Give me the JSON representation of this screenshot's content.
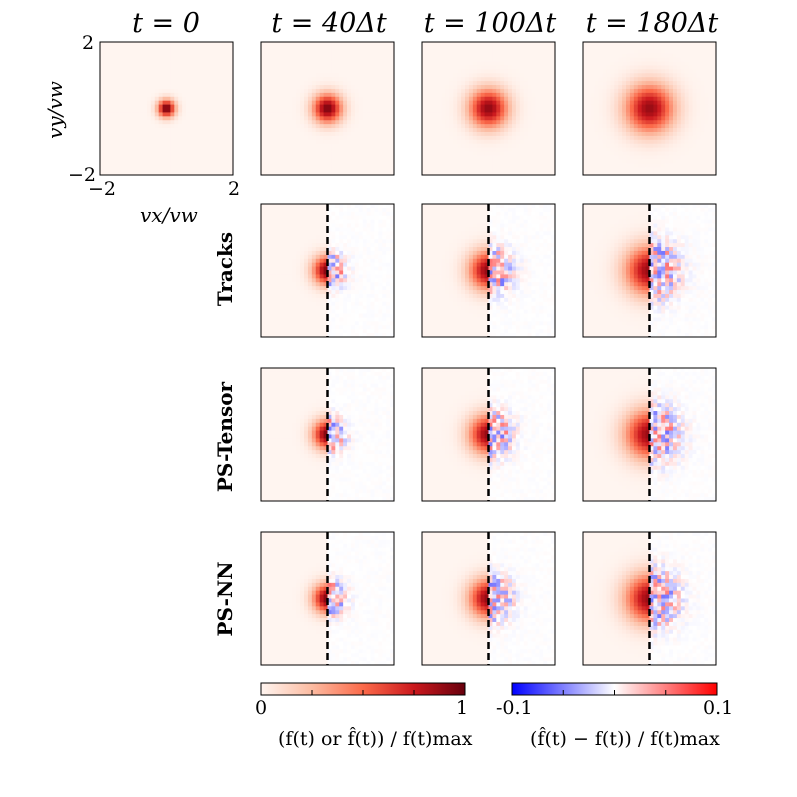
{
  "figure": {
    "column_titles": [
      "t = 0",
      "t = 40Δt",
      "t = 100Δt",
      "t = 180Δt"
    ],
    "row_labels": [
      "Tracks",
      "PS-Tensor",
      "PS-NN"
    ],
    "axes": {
      "x_label": "vx/vw",
      "y_label": "vy/vw",
      "x_ticks": [
        "−2",
        "2"
      ],
      "y_ticks": [
        "2",
        "−2"
      ],
      "range": [
        -2,
        2
      ]
    },
    "blob_spread": [
      0.18,
      0.3,
      0.4,
      0.5
    ],
    "blob_peak": [
      1.0,
      0.95,
      0.9,
      0.88
    ],
    "colorbars": {
      "density": {
        "min_label": "0",
        "max_label": "1",
        "label": "(f(t) or f̂(t)) / f(t)max",
        "colors": [
          "#fff5f0",
          "#fcbba1",
          "#fb6a4a",
          "#cb181d",
          "#67000d"
        ]
      },
      "difference": {
        "min_label": "-0.1",
        "max_label": "0.1",
        "label": "(f̂(t) − f(t)) / f(t)max",
        "colors": [
          "#0000ff",
          "#ffffff",
          "#ff0000"
        ]
      }
    },
    "divider_style": "dashed"
  }
}
